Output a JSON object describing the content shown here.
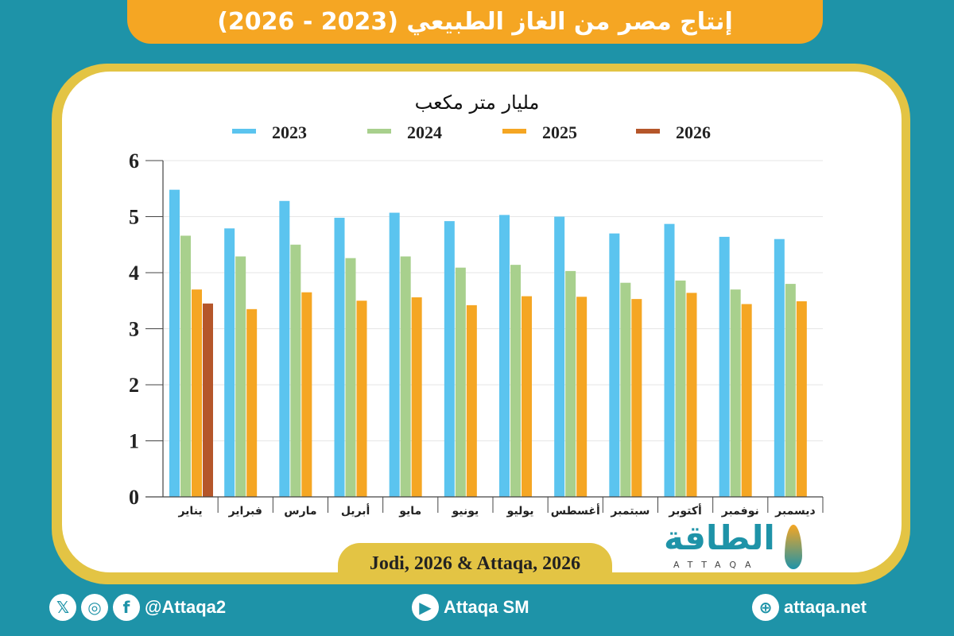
{
  "title": "إنتاج مصر من الغاز الطبيعي (2023 - 2026)",
  "source": "Jodi, 2026 & Attaqa, 2026",
  "logo": {
    "arabic": "الطاقة",
    "latin": "ATTAQA"
  },
  "footer": {
    "social_handle": "@Attaqa2",
    "youtube": "Attaqa SM",
    "website": "attaqa.net"
  },
  "colors": {
    "background": "#1e93a8",
    "title_bar": "#f5a623",
    "frame": "#e3c444"
  },
  "chart_data": {
    "type": "bar",
    "ylabel": "مليار متر مكعب",
    "ylim": [
      0,
      6
    ],
    "yticks": [
      0,
      1,
      2,
      3,
      4,
      5,
      6
    ],
    "grid": true,
    "legend_position": "top",
    "categories": [
      "يناير",
      "فبراير",
      "مارس",
      "أبريل",
      "مايو",
      "يونيو",
      "يوليو",
      "أغسطس",
      "سبتمبر",
      "أكتوبر",
      "نوفمبر",
      "ديسمبر"
    ],
    "series": [
      {
        "name": "2023",
        "color": "#5bc4ef",
        "values": [
          5.48,
          4.79,
          5.28,
          4.98,
          5.07,
          4.92,
          5.03,
          5.0,
          4.7,
          4.87,
          4.64,
          4.6
        ]
      },
      {
        "name": "2024",
        "color": "#a8d08d",
        "values": [
          4.66,
          4.29,
          4.5,
          4.26,
          4.29,
          4.09,
          4.14,
          4.03,
          3.82,
          3.86,
          3.7,
          3.8
        ]
      },
      {
        "name": "2025",
        "color": "#f5a623",
        "values": [
          3.7,
          3.35,
          3.65,
          3.5,
          3.56,
          3.42,
          3.58,
          3.57,
          3.53,
          3.64,
          3.44,
          3.49
        ]
      },
      {
        "name": "2026",
        "color": "#b5562a",
        "values": [
          3.45,
          null,
          null,
          null,
          null,
          null,
          null,
          null,
          null,
          null,
          null,
          null
        ]
      }
    ]
  }
}
